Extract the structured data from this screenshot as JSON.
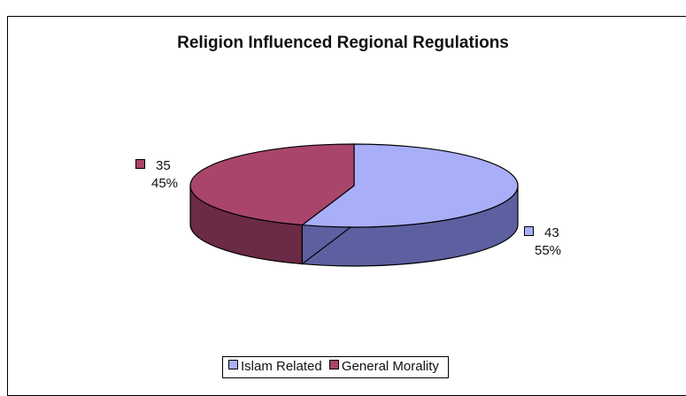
{
  "chart_data": {
    "type": "pie",
    "title": "Religion Influenced Regional Regulations",
    "categories": [
      "Islam Related",
      "General Morality"
    ],
    "values": [
      43,
      35
    ],
    "percent_labels": [
      "55%",
      "45%"
    ],
    "colors": [
      "#A9AEF9",
      "#A9456B"
    ],
    "side_colors": [
      "#5C60A0",
      "#6B2A45"
    ],
    "legend_position": "bottom",
    "style": "3d"
  }
}
